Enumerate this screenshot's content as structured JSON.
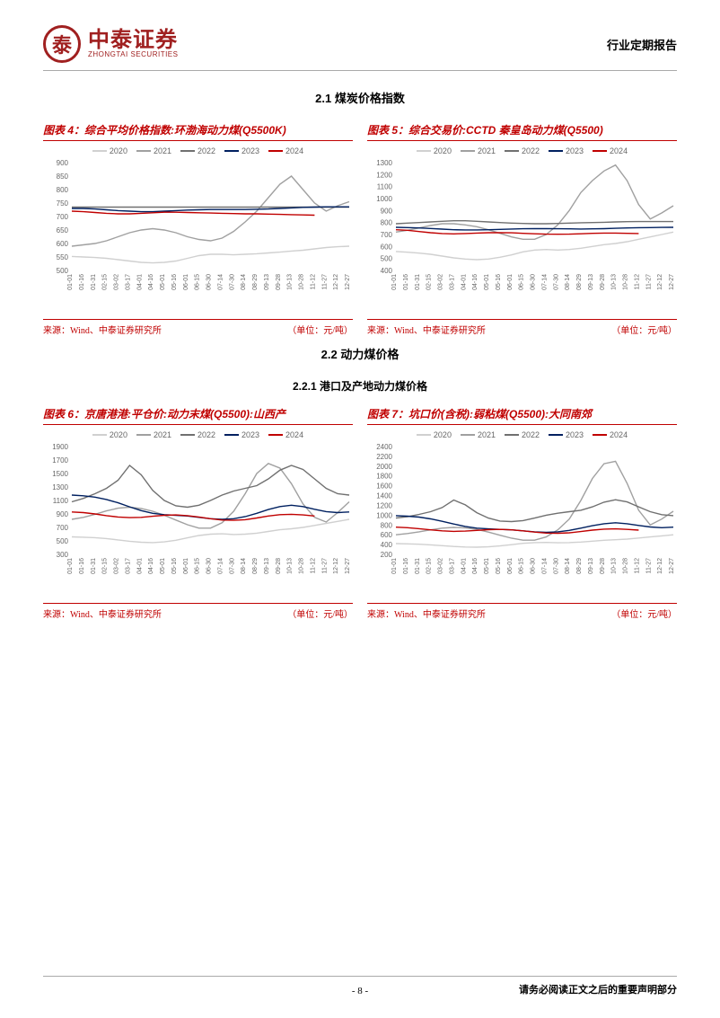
{
  "header": {
    "logo_cn": "中泰证券",
    "logo_en": "ZHONGTAI SECURITIES",
    "report_type": "行业定期报告"
  },
  "sections": {
    "s1": "2.1 煤炭价格指数",
    "s2": "2.2 动力煤价格",
    "s21": "2.2.1 港口及产地动力煤价格"
  },
  "legend": {
    "years": [
      "2020",
      "2021",
      "2022",
      "2023",
      "2024"
    ],
    "colors": [
      "#d0d0d0",
      "#a0a0a0",
      "#707070",
      "#002060",
      "#c00000"
    ]
  },
  "x_labels": [
    "01-01",
    "01-16",
    "01-31",
    "02-15",
    "03-02",
    "03-17",
    "04-01",
    "04-16",
    "05-01",
    "05-16",
    "06-01",
    "06-15",
    "06-30",
    "07-14",
    "07-30",
    "08-14",
    "08-29",
    "09-13",
    "09-28",
    "10-13",
    "10-28",
    "11-12",
    "11-27",
    "12-12",
    "12-27"
  ],
  "charts": {
    "c4": {
      "title": "图表 4：综合平均价格指数:环渤海动力煤(Q5500K)",
      "source_l": "来源：Wind、中泰证券研究所",
      "source_r": "（单位：元/吨）",
      "ylim": [
        500,
        900
      ],
      "ytick_step": 50,
      "bg": "#ffffff",
      "series": {
        "2020": [
          552,
          550,
          548,
          545,
          540,
          535,
          530,
          528,
          530,
          535,
          545,
          555,
          560,
          560,
          558,
          560,
          562,
          565,
          568,
          572,
          575,
          580,
          585,
          588,
          590
        ],
        "2021": [
          590,
          595,
          600,
          610,
          625,
          640,
          650,
          655,
          650,
          640,
          625,
          615,
          610,
          620,
          645,
          680,
          720,
          770,
          820,
          850,
          800,
          750,
          720,
          740,
          755
        ],
        "2022": [
          735,
          735,
          735,
          735,
          735,
          735,
          735,
          735,
          735,
          735,
          735,
          735,
          735,
          735,
          735,
          735,
          735,
          735,
          735,
          735,
          735,
          735,
          735,
          735,
          735
        ],
        "2023": [
          730,
          730,
          728,
          725,
          722,
          720,
          718,
          718,
          720,
          722,
          724,
          725,
          726,
          726,
          726,
          726,
          727,
          728,
          730,
          732,
          734,
          735,
          736,
          736,
          736
        ],
        "2024": [
          720,
          718,
          715,
          712,
          710,
          710,
          712,
          714,
          716,
          716,
          715,
          714,
          713,
          712,
          711,
          710,
          710,
          709,
          708,
          707,
          706,
          705,
          0,
          0,
          0
        ]
      }
    },
    "c5": {
      "title": "图表 5：综合交易价:CCTD 秦皇岛动力煤(Q5500)",
      "source_l": "来源：Wind、中泰证券研究所",
      "source_r": "（单位：元/吨）",
      "ylim": [
        400,
        1300
      ],
      "ytick_step": 100,
      "bg": "#ffffff",
      "series": {
        "2020": [
          558,
          552,
          545,
          535,
          520,
          505,
          495,
          490,
          495,
          510,
          530,
          555,
          570,
          575,
          570,
          575,
          585,
          600,
          615,
          625,
          640,
          660,
          680,
          700,
          720
        ],
        "2021": [
          720,
          735,
          755,
          775,
          790,
          790,
          780,
          765,
          740,
          710,
          680,
          660,
          660,
          700,
          780,
          900,
          1050,
          1150,
          1230,
          1280,
          1150,
          950,
          830,
          880,
          940
        ],
        "2022": [
          790,
          795,
          800,
          805,
          810,
          815,
          815,
          810,
          805,
          800,
          795,
          792,
          790,
          790,
          792,
          795,
          798,
          800,
          802,
          805,
          807,
          808,
          808,
          808,
          808
        ],
        "2023": [
          760,
          758,
          755,
          750,
          745,
          740,
          738,
          738,
          740,
          743,
          746,
          748,
          749,
          749,
          748,
          747,
          746,
          747,
          749,
          752,
          755,
          757,
          758,
          759,
          760
        ],
        "2024": [
          740,
          735,
          725,
          715,
          708,
          705,
          708,
          712,
          715,
          716,
          714,
          710,
          706,
          703,
          702,
          703,
          706,
          710,
          712,
          712,
          710,
          708,
          0,
          0,
          0
        ]
      }
    },
    "c6": {
      "title": "图表 6：京唐港港:平仓价:动力末煤(Q5500):山西产",
      "source_l": "来源：Wind、中泰证券研究所",
      "source_r": "（单位：元/吨）",
      "ylim": [
        300,
        1900
      ],
      "ytick_step": 200,
      "bg": "#ffffff",
      "series": {
        "2020": [
          560,
          555,
          548,
          535,
          515,
          495,
          480,
          475,
          485,
          510,
          545,
          580,
          600,
          605,
          595,
          600,
          615,
          640,
          665,
          680,
          700,
          730,
          760,
          790,
          820
        ],
        "2021": [
          820,
          850,
          895,
          945,
          985,
          1000,
          980,
          940,
          880,
          810,
          740,
          690,
          690,
          770,
          940,
          1200,
          1500,
          1650,
          1580,
          1350,
          1050,
          850,
          780,
          920,
          1080
        ],
        "2022": [
          1080,
          1130,
          1200,
          1280,
          1400,
          1620,
          1480,
          1250,
          1100,
          1020,
          1000,
          1030,
          1100,
          1180,
          1240,
          1280,
          1320,
          1420,
          1550,
          1620,
          1560,
          1420,
          1280,
          1200,
          1180
        ],
        "2023": [
          1180,
          1170,
          1150,
          1115,
          1065,
          1005,
          950,
          910,
          890,
          880,
          870,
          850,
          830,
          820,
          830,
          860,
          910,
          965,
          1010,
          1030,
          1010,
          970,
          935,
          920,
          930
        ],
        "2024": [
          930,
          920,
          900,
          875,
          855,
          845,
          850,
          865,
          880,
          885,
          875,
          855,
          830,
          810,
          805,
          815,
          840,
          870,
          890,
          895,
          885,
          870,
          0,
          0,
          0
        ]
      }
    },
    "c7": {
      "title": "图表 7：坑口价(含税):弱粘煤(Q5500):大同南郊",
      "source_l": "来源：Wind、中泰证券研究所",
      "source_r": "（单位：元/吨）",
      "ylim": [
        200,
        2400
      ],
      "ytick_step": 200,
      "bg": "#ffffff",
      "series": {
        "2020": [
          420,
          415,
          408,
          395,
          378,
          362,
          350,
          346,
          354,
          372,
          398,
          425,
          440,
          444,
          436,
          440,
          452,
          470,
          488,
          498,
          512,
          534,
          555,
          577,
          600
        ],
        "2021": [
          600,
          625,
          660,
          700,
          735,
          750,
          740,
          710,
          655,
          590,
          530,
          490,
          490,
          555,
          700,
          920,
          1300,
          1750,
          2050,
          2100,
          1650,
          1100,
          800,
          920,
          1080
        ],
        "2022": [
          940,
          970,
          1015,
          1070,
          1155,
          1310,
          1210,
          1050,
          940,
          880,
          870,
          890,
          940,
          1000,
          1040,
          1070,
          1100,
          1170,
          1265,
          1315,
          1270,
          1170,
          1070,
          1010,
          990
        ],
        "2023": [
          990,
          980,
          960,
          925,
          875,
          820,
          770,
          735,
          720,
          710,
          700,
          680,
          660,
          650,
          660,
          690,
          735,
          785,
          825,
          845,
          825,
          790,
          760,
          745,
          755
        ],
        "2024": [
          755,
          745,
          725,
          700,
          680,
          670,
          675,
          690,
          705,
          710,
          700,
          680,
          655,
          635,
          630,
          640,
          665,
          695,
          715,
          720,
          710,
          695,
          0,
          0,
          0
        ]
      }
    }
  },
  "footer": {
    "page": "- 8 -",
    "disclaimer": "请务必阅读正文之后的重要声明部分"
  }
}
